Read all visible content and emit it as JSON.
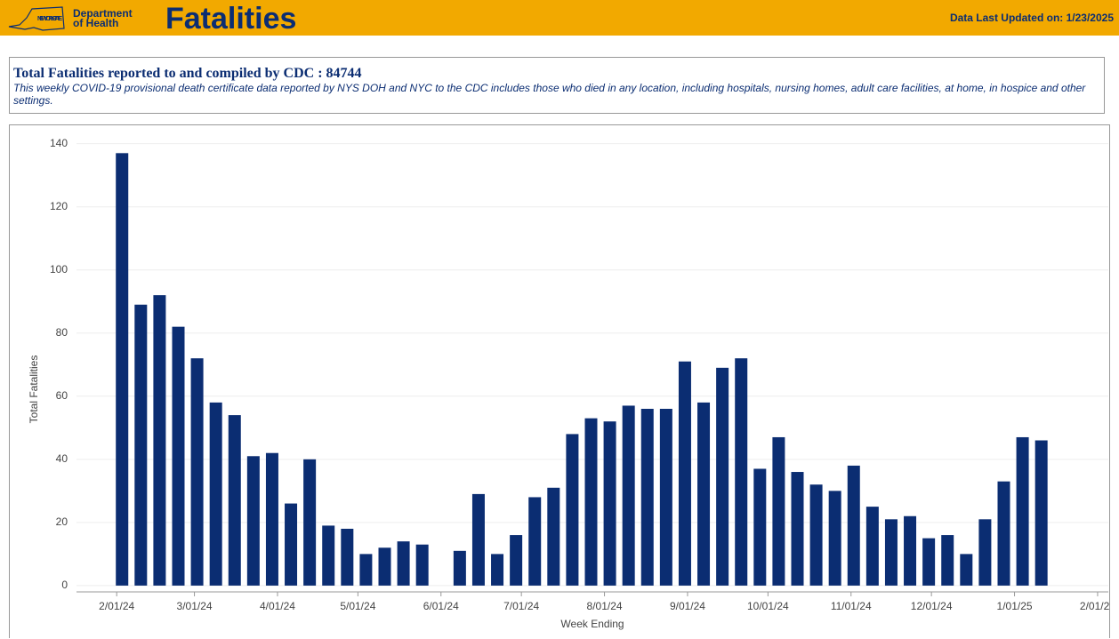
{
  "header": {
    "logo": "NEW YORK STATE",
    "department": "Department of Health",
    "title": "Fatalities",
    "updated": "Data Last Updated on: 1/23/2025"
  },
  "info": {
    "title": "Total Fatalities reported to and compiled by CDC : 84744",
    "description": "This weekly COVID-19 provisional death certificate data reported by NYS DOH and NYC to the CDC includes those who died in any location, including hospitals, nursing homes, adult care facilities, at home, in hospice and other settings."
  },
  "chart_data": {
    "type": "bar",
    "x_label": "Week Ending",
    "y_label": "Total Fatalities",
    "color": "#0b2d72",
    "grid": true,
    "x": [
      "2/03/24",
      "2/10/24",
      "2/17/24",
      "2/24/24",
      "3/02/24",
      "3/09/24",
      "3/16/24",
      "3/23/24",
      "3/30/24",
      "4/06/24",
      "4/13/24",
      "4/20/24",
      "4/27/24",
      "5/04/24",
      "5/11/24",
      "5/18/24",
      "5/25/24",
      "6/01/24",
      "6/08/24",
      "6/15/24",
      "6/22/24",
      "6/29/24",
      "7/06/24",
      "7/13/24",
      "7/20/24",
      "7/27/24",
      "8/03/24",
      "8/10/24",
      "8/17/24",
      "8/24/24",
      "8/31/24",
      "9/07/24",
      "9/14/24",
      "9/21/24",
      "9/28/24",
      "10/05/24",
      "10/12/24",
      "10/19/24",
      "10/26/24",
      "11/02/24",
      "11/09/24",
      "11/16/24",
      "11/23/24",
      "11/30/24",
      "12/07/24",
      "12/14/24",
      "12/21/24",
      "12/28/24",
      "1/04/25",
      "1/11/25"
    ],
    "values": [
      137,
      89,
      92,
      82,
      72,
      58,
      54,
      41,
      42,
      26,
      40,
      19,
      18,
      10,
      12,
      14,
      13,
      null,
      11,
      29,
      10,
      16,
      28,
      31,
      48,
      53,
      52,
      57,
      56,
      56,
      71,
      58,
      69,
      72,
      37,
      47,
      36,
      32,
      30,
      38,
      25,
      21,
      22,
      15,
      16,
      10,
      21,
      33,
      47,
      46
    ],
    "xlim": [
      "1/17/24",
      "2/05/25"
    ],
    "xticks": [
      "2/01/24",
      "3/01/24",
      "4/01/24",
      "5/01/24",
      "6/01/24",
      "7/01/24",
      "8/01/24",
      "9/01/24",
      "10/01/24",
      "11/01/24",
      "12/01/24",
      "1/01/25",
      "2/01/25"
    ],
    "ylim": [
      -2,
      143
    ],
    "yticks": [
      0,
      20,
      40,
      60,
      80,
      100,
      120,
      140
    ]
  }
}
